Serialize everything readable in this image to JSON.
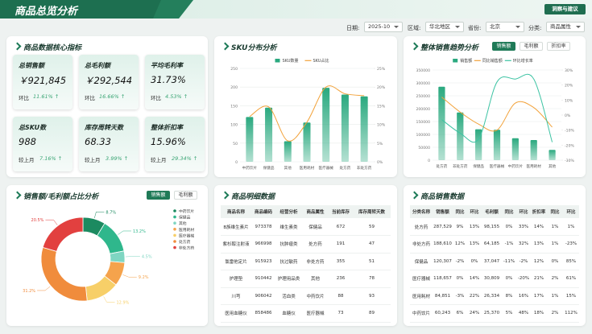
{
  "header": {
    "title": "商品总览分析",
    "button": "洞察与建议"
  },
  "filters": [
    {
      "label": "日期:",
      "value": "2025-10"
    },
    {
      "label": "区域:",
      "value": "华北地区"
    },
    {
      "label": "省份:",
      "value": "北京"
    },
    {
      "label": "分类:",
      "value": "商品属性"
    }
  ],
  "kpi_panel": {
    "title": "商品数据核心指标",
    "cards": [
      {
        "label": "总销售额",
        "value": "￥921,845",
        "change_label": "环比",
        "change": "11.61% ↑"
      },
      {
        "label": "总毛利额",
        "value": "￥292,544",
        "change_label": "环比",
        "change": "16.66% ↑"
      },
      {
        "label": "平均毛利率",
        "value": "31.73%",
        "change_label": "环比",
        "change": "4.53% ↑"
      },
      {
        "label": "总SKU数",
        "value": "988",
        "change_label": "较上月",
        "change": "7.16% ↑"
      },
      {
        "label": "库存周转天数",
        "value": "68.33",
        "change_label": "较上月",
        "change": "3.99% ↑"
      },
      {
        "label": "整体折扣率",
        "value": "15.96%",
        "change_label": "较上月",
        "change": "29.34% ↑"
      }
    ]
  },
  "chart_data": [
    {
      "type": "combo",
      "title": "SKU分布分析",
      "grid": true,
      "categories": [
        "中药饮片",
        "保健品",
        "其他",
        "医用耗材",
        "医疗器械",
        "处方药",
        "非处方药"
      ],
      "series": [
        {
          "name": "SKU数量",
          "type": "bar",
          "color": "#2aa97f",
          "values": [
            120,
            145,
            55,
            105,
            198,
            180,
            175
          ]
        },
        {
          "name": "SKU占比",
          "type": "line",
          "axis": "y2",
          "color": "#f2a23a",
          "values": [
            12.1,
            14.7,
            5.6,
            10.6,
            20.0,
            18.2,
            17.7
          ]
        }
      ],
      "ylim": [
        0,
        250
      ],
      "yticks": [
        0,
        50,
        100,
        150,
        200,
        250
      ],
      "y2lim": [
        0,
        25
      ],
      "y2ticks": [
        {
          "value": 0,
          "label": "0%"
        },
        {
          "value": 5,
          "label": "5%"
        },
        {
          "value": 10,
          "label": "10%"
        },
        {
          "value": 15,
          "label": "15%"
        },
        {
          "value": 20,
          "label": "20%"
        },
        {
          "value": 25,
          "label": "25%"
        }
      ]
    },
    {
      "type": "combo",
      "title": "整体销售趋势分析",
      "tabs": [
        "销售额",
        "毛利额",
        "折扣率"
      ],
      "grid": true,
      "categories": [
        "处方药",
        "非处方药",
        "保健品",
        "医疗器械",
        "中药饮片",
        "医用耗材",
        "其他"
      ],
      "series": [
        {
          "name": "销售额",
          "type": "bar",
          "color": "#2aa97f",
          "values": [
            285000,
            185000,
            120000,
            118000,
            85000,
            78000,
            40000
          ]
        },
        {
          "name": "同比销售额",
          "type": "line",
          "axis": "y2",
          "color": "#f2a23a",
          "values": [
            12,
            2,
            -6,
            -10,
            8,
            5,
            -8
          ]
        },
        {
          "name": "环比增长率",
          "type": "line",
          "axis": "y2",
          "color": "#3cc3a3",
          "values": [
            -3,
            -12,
            -16,
            22,
            24,
            24,
            -18
          ]
        }
      ],
      "ylim": [
        0,
        350000
      ],
      "yticks": [
        0,
        50000,
        100000,
        150000,
        200000,
        250000,
        300000,
        350000
      ],
      "y2lim": [
        -30,
        30
      ],
      "y2ticks": [
        {
          "value": -30,
          "label": "-30%"
        },
        {
          "value": -20,
          "label": "-20%"
        },
        {
          "value": -10,
          "label": "-10%"
        },
        {
          "value": 0,
          "label": "0%"
        },
        {
          "value": 10,
          "label": "10%"
        },
        {
          "value": 20,
          "label": "20%"
        },
        {
          "value": 30,
          "label": "30%"
        }
      ]
    },
    {
      "type": "pie",
      "title": "销售额/毛利额占比分析",
      "tabs": [
        "销售额",
        "毛利额"
      ],
      "categories": [
        "中药饮片",
        "保健品",
        "其他",
        "医用耗材",
        "医疗器械",
        "处方药",
        "非处方药"
      ],
      "values": [
        8.7,
        13.2,
        4.5,
        9.2,
        12.9,
        31.2,
        20.5
      ],
      "value_labels": [
        "8.7%",
        "13.2%",
        "4.5%",
        "9.2%",
        "12.9%",
        "31.2%",
        "20.5%"
      ],
      "colors": [
        "#1c8a60",
        "#2fb78c",
        "#7fd6c2",
        "#f5a34c",
        "#f7cf68",
        "#f08c3c",
        "#e2403f"
      ]
    }
  ],
  "product_table": {
    "title": "商品明细数据",
    "columns": [
      "商品名称",
      "商品编码",
      "经营分析",
      "商品属性",
      "当前库存",
      "库存周转天数"
    ],
    "rows": [
      [
        "B族维生素片",
        "973378",
        "维生素类",
        "保健品",
        "672",
        "59"
      ],
      [
        "紫杉醇注射液",
        "966998",
        "抗肿瘤类",
        "处方药",
        "191",
        "47"
      ],
      [
        "氯雷他定片",
        "915923",
        "抗过敏药",
        "非处方药",
        "355",
        "51"
      ],
      [
        "护理垫",
        "910442",
        "护理用品类",
        "其他",
        "236",
        "78"
      ],
      [
        "川芎",
        "906042",
        "活血类",
        "中药饮片",
        "88",
        "93"
      ],
      [
        "医用血糖仪",
        "858486",
        "血糖仪",
        "医疗器械",
        "73",
        "89"
      ]
    ]
  },
  "sales_table": {
    "title": "商品销售数据",
    "columns": [
      "分类名称",
      "销售额",
      "同比",
      "环比",
      "毛利额",
      "同比",
      "环比",
      "折扣率",
      "同比",
      "环比"
    ],
    "rows": [
      [
        "处方药",
        "287,529",
        "9%",
        "13%",
        "98,155",
        "0%",
        "33%",
        "14%",
        "1%",
        "1%"
      ],
      [
        "非处方药",
        "188,610",
        "12%",
        "13%",
        "64,185",
        "-1%",
        "32%",
        "13%",
        "1%",
        "-23%"
      ],
      [
        "保健品",
        "120,307",
        "-2%",
        "0%",
        "37,047",
        "-11%",
        "-2%",
        "12%",
        "0%",
        "85%"
      ],
      [
        "医疗器械",
        "118,657",
        "0%",
        "14%",
        "30,809",
        "0%",
        "-20%",
        "21%",
        "2%",
        "61%"
      ],
      [
        "医用耗材",
        "84,851",
        "-3%",
        "22%",
        "26,334",
        "8%",
        "16%",
        "17%",
        "1%",
        "15%"
      ],
      [
        "中药饮片",
        "60,243",
        "6%",
        "24%",
        "25,370",
        "5%",
        "48%",
        "18%",
        "2%",
        "112%"
      ]
    ]
  }
}
